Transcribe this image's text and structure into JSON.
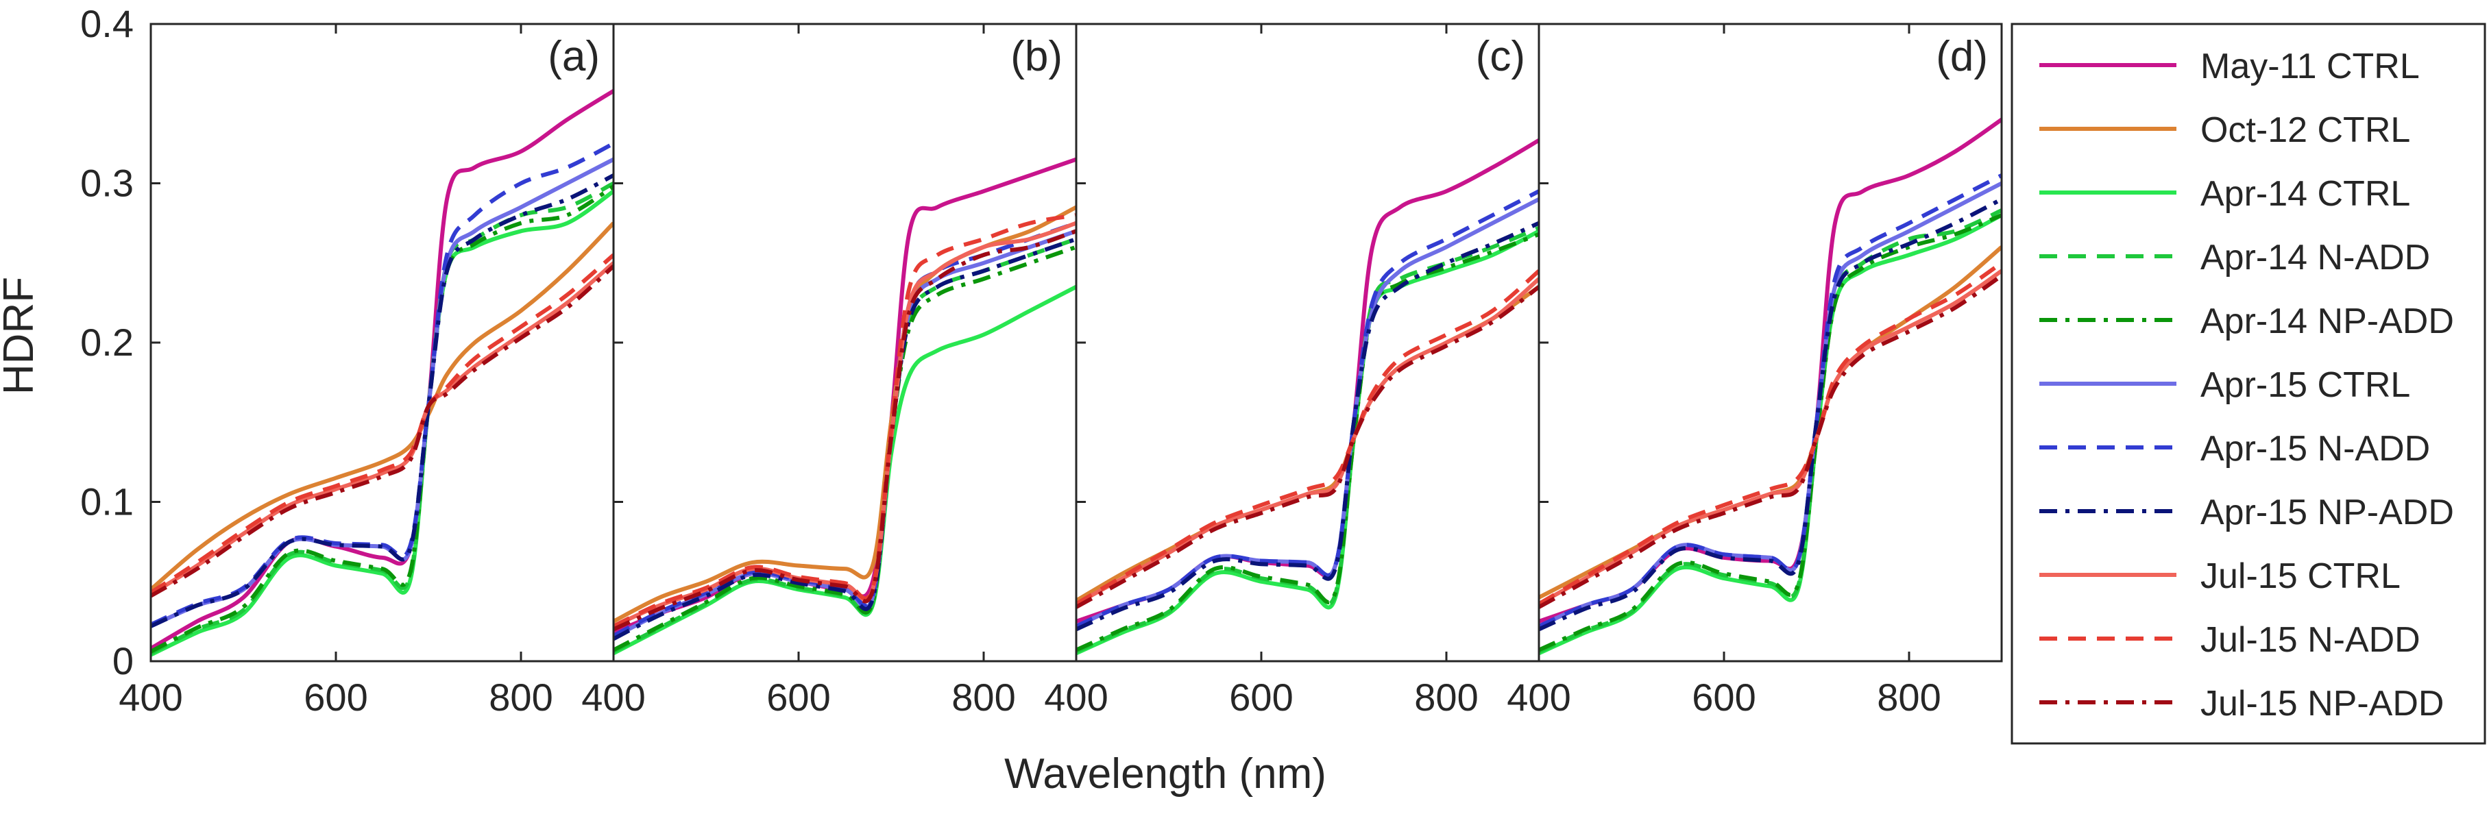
{
  "chart_data": {
    "type": "line",
    "ylabel": "HDRF",
    "xlabel": "Wavelength (nm)",
    "xlim": [
      400,
      900
    ],
    "ylim": [
      0,
      0.4
    ],
    "xticks": [
      400,
      600,
      800
    ],
    "yticks": [
      0,
      0.1,
      0.2,
      0.3,
      0.4
    ],
    "xtick_labels": [
      "400",
      "600",
      "800"
    ],
    "ytick_labels": [
      "0",
      "0.1",
      "0.2",
      "0.3",
      "0.4"
    ],
    "legend_position": "right",
    "legend": [
      {
        "name": "May-11 CTRL",
        "color": "#c8148c",
        "style": "solid"
      },
      {
        "name": "Oct-12 CTRL",
        "color": "#dc8232",
        "style": "solid"
      },
      {
        "name": "Apr-14 CTRL",
        "color": "#28e650",
        "style": "solid"
      },
      {
        "name": "Apr-14 N-ADD",
        "color": "#1ec83c",
        "style": "dash"
      },
      {
        "name": "Apr-14 NP-ADD",
        "color": "#0a960a",
        "style": "dashdot"
      },
      {
        "name": "Apr-15 CTRL",
        "color": "#6e6ee6",
        "style": "solid"
      },
      {
        "name": "Apr-15 N-ADD",
        "color": "#323cd2",
        "style": "dash"
      },
      {
        "name": "Apr-15 NP-ADD",
        "color": "#0a1478",
        "style": "dashdot"
      },
      {
        "name": "Jul-15 CTRL",
        "color": "#f0645a",
        "style": "solid"
      },
      {
        "name": "Jul-15 N-ADD",
        "color": "#e63c32",
        "style": "dash"
      },
      {
        "name": "Jul-15 NP-ADD",
        "color": "#a00a14",
        "style": "dashdot"
      }
    ],
    "x": [
      400,
      450,
      500,
      550,
      600,
      650,
      680,
      700,
      720,
      750,
      800,
      850,
      900
    ],
    "panels": [
      {
        "label": "(a)",
        "series": [
          {
            "name": "May-11 CTRL",
            "values": [
              0.008,
              0.025,
              0.04,
              0.075,
              0.072,
              0.065,
              0.07,
              0.16,
              0.29,
              0.31,
              0.32,
              0.34,
              0.358
            ]
          },
          {
            "name": "Oct-12 CTRL",
            "values": [
              0.045,
              0.07,
              0.09,
              0.105,
              0.115,
              0.125,
              0.135,
              0.155,
              0.18,
              0.2,
              0.22,
              0.245,
              0.275
            ]
          },
          {
            "name": "Apr-14 CTRL",
            "values": [
              0.004,
              0.018,
              0.03,
              0.065,
              0.06,
              0.055,
              0.05,
              0.16,
              0.245,
              0.26,
              0.27,
              0.275,
              0.295
            ]
          },
          {
            "name": "Apr-14 N-ADD",
            "values": [
              0.005,
              0.02,
              0.032,
              0.067,
              0.062,
              0.057,
              0.053,
              0.16,
              0.25,
              0.265,
              0.28,
              0.285,
              0.3
            ]
          },
          {
            "name": "Apr-14 NP-ADD",
            "values": [
              0.006,
              0.021,
              0.034,
              0.068,
              0.063,
              0.058,
              0.055,
              0.16,
              0.245,
              0.262,
              0.275,
              0.28,
              0.298
            ]
          },
          {
            "name": "Apr-15 CTRL",
            "values": [
              0.022,
              0.035,
              0.045,
              0.075,
              0.073,
              0.072,
              0.07,
              0.16,
              0.25,
              0.27,
              0.285,
              0.3,
              0.315
            ]
          },
          {
            "name": "Apr-15 N-ADD",
            "values": [
              0.023,
              0.036,
              0.046,
              0.076,
              0.074,
              0.073,
              0.072,
              0.16,
              0.255,
              0.28,
              0.3,
              0.31,
              0.325
            ]
          },
          {
            "name": "Apr-15 NP-ADD",
            "values": [
              0.022,
              0.035,
              0.045,
              0.075,
              0.073,
              0.072,
              0.07,
              0.16,
              0.245,
              0.265,
              0.28,
              0.29,
              0.305
            ]
          },
          {
            "name": "Jul-15 CTRL",
            "values": [
              0.042,
              0.06,
              0.08,
              0.098,
              0.108,
              0.118,
              0.128,
              0.16,
              0.17,
              0.185,
              0.205,
              0.225,
              0.25
            ]
          },
          {
            "name": "Jul-15 N-ADD",
            "values": [
              0.043,
              0.062,
              0.082,
              0.1,
              0.11,
              0.12,
              0.13,
              0.16,
              0.172,
              0.19,
              0.21,
              0.23,
              0.255
            ]
          },
          {
            "name": "Jul-15 NP-ADD",
            "values": [
              0.041,
              0.058,
              0.078,
              0.096,
              0.106,
              0.116,
              0.126,
              0.16,
              0.168,
              0.183,
              0.203,
              0.222,
              0.248
            ]
          }
        ]
      },
      {
        "label": "(b)",
        "series": [
          {
            "name": "May-11 CTRL",
            "values": [
              0.018,
              0.03,
              0.04,
              0.055,
              0.05,
              0.045,
              0.05,
              0.15,
              0.27,
              0.285,
              0.295,
              0.305,
              0.315
            ]
          },
          {
            "name": "Oct-12 CTRL",
            "values": [
              0.025,
              0.04,
              0.05,
              0.062,
              0.06,
              0.058,
              0.06,
              0.15,
              0.22,
              0.245,
              0.26,
              0.27,
              0.285
            ]
          },
          {
            "name": "Apr-14 CTRL",
            "values": [
              0.005,
              0.02,
              0.035,
              0.05,
              0.045,
              0.04,
              0.035,
              0.13,
              0.18,
              0.195,
              0.205,
              0.22,
              0.235
            ]
          },
          {
            "name": "Apr-14 N-ADD",
            "values": [
              0.006,
              0.021,
              0.036,
              0.051,
              0.046,
              0.041,
              0.036,
              0.14,
              0.215,
              0.235,
              0.245,
              0.255,
              0.265
            ]
          },
          {
            "name": "Apr-14 NP-ADD",
            "values": [
              0.007,
              0.022,
              0.037,
              0.052,
              0.047,
              0.042,
              0.037,
              0.14,
              0.21,
              0.23,
              0.24,
              0.25,
              0.26
            ]
          },
          {
            "name": "Apr-15 CTRL",
            "values": [
              0.015,
              0.03,
              0.042,
              0.055,
              0.05,
              0.045,
              0.04,
              0.14,
              0.22,
              0.24,
              0.25,
              0.26,
              0.27
            ]
          },
          {
            "name": "Apr-15 N-ADD",
            "values": [
              0.016,
              0.031,
              0.043,
              0.056,
              0.051,
              0.046,
              0.041,
              0.14,
              0.225,
              0.245,
              0.255,
              0.265,
              0.275
            ]
          },
          {
            "name": "Apr-15 NP-ADD",
            "values": [
              0.014,
              0.029,
              0.041,
              0.054,
              0.049,
              0.044,
              0.039,
              0.14,
              0.215,
              0.235,
              0.245,
              0.255,
              0.265
            ]
          },
          {
            "name": "Jul-15 CTRL",
            "values": [
              0.022,
              0.035,
              0.045,
              0.058,
              0.052,
              0.048,
              0.045,
              0.14,
              0.225,
              0.245,
              0.26,
              0.265,
              0.275
            ]
          },
          {
            "name": "Jul-15 N-ADD",
            "values": [
              0.022,
              0.036,
              0.046,
              0.059,
              0.053,
              0.049,
              0.046,
              0.145,
              0.235,
              0.255,
              0.265,
              0.275,
              0.28
            ]
          },
          {
            "name": "Jul-15 NP-ADD",
            "values": [
              0.02,
              0.033,
              0.044,
              0.057,
              0.051,
              0.047,
              0.044,
              0.14,
              0.22,
              0.24,
              0.255,
              0.26,
              0.27
            ]
          }
        ]
      },
      {
        "label": "(c)",
        "series": [
          {
            "name": "May-11 CTRL",
            "values": [
              0.025,
              0.035,
              0.045,
              0.065,
              0.062,
              0.06,
              0.06,
              0.15,
              0.26,
              0.285,
              0.295,
              0.31,
              0.327
            ]
          },
          {
            "name": "Oct-12 CTRL",
            "values": [
              0.038,
              0.055,
              0.07,
              0.085,
              0.095,
              0.105,
              0.112,
              0.14,
              0.165,
              0.185,
              0.2,
              0.215,
              0.235
            ]
          },
          {
            "name": "Apr-14 CTRL",
            "values": [
              0.005,
              0.018,
              0.03,
              0.055,
              0.05,
              0.045,
              0.04,
              0.14,
              0.22,
              0.235,
              0.245,
              0.255,
              0.27
            ]
          },
          {
            "name": "Apr-14 N-ADD",
            "values": [
              0.006,
              0.019,
              0.031,
              0.057,
              0.052,
              0.047,
              0.042,
              0.14,
              0.225,
              0.24,
              0.25,
              0.26,
              0.272
            ]
          },
          {
            "name": "Apr-14 NP-ADD",
            "values": [
              0.007,
              0.02,
              0.032,
              0.058,
              0.053,
              0.048,
              0.043,
              0.14,
              0.22,
              0.237,
              0.247,
              0.257,
              0.268
            ]
          },
          {
            "name": "Apr-15 CTRL",
            "values": [
              0.022,
              0.035,
              0.045,
              0.065,
              0.063,
              0.062,
              0.06,
              0.15,
              0.22,
              0.245,
              0.26,
              0.275,
              0.29
            ]
          },
          {
            "name": "Apr-15 N-ADD",
            "values": [
              0.022,
              0.035,
              0.045,
              0.065,
              0.063,
              0.062,
              0.06,
              0.15,
              0.225,
              0.25,
              0.265,
              0.28,
              0.295
            ]
          },
          {
            "name": "Apr-15 NP-ADD",
            "values": [
              0.02,
              0.033,
              0.043,
              0.063,
              0.061,
              0.06,
              0.058,
              0.15,
              0.215,
              0.235,
              0.25,
              0.262,
              0.275
            ]
          },
          {
            "name": "Jul-15 CTRL",
            "values": [
              0.036,
              0.052,
              0.068,
              0.085,
              0.095,
              0.105,
              0.11,
              0.14,
              0.165,
              0.185,
              0.2,
              0.215,
              0.24
            ]
          },
          {
            "name": "Jul-15 N-ADD",
            "values": [
              0.036,
              0.053,
              0.07,
              0.087,
              0.098,
              0.108,
              0.115,
              0.14,
              0.168,
              0.19,
              0.205,
              0.22,
              0.245
            ]
          },
          {
            "name": "Jul-15 NP-ADD",
            "values": [
              0.034,
              0.05,
              0.066,
              0.083,
              0.093,
              0.103,
              0.108,
              0.14,
              0.163,
              0.183,
              0.198,
              0.213,
              0.235
            ]
          }
        ]
      },
      {
        "label": "(d)",
        "series": [
          {
            "name": "May-11 CTRL",
            "values": [
              0.025,
              0.035,
              0.045,
              0.07,
              0.065,
              0.063,
              0.065,
              0.15,
              0.275,
              0.295,
              0.305,
              0.32,
              0.34
            ]
          },
          {
            "name": "Oct-12 CTRL",
            "values": [
              0.04,
              0.055,
              0.07,
              0.085,
              0.095,
              0.105,
              0.112,
              0.14,
              0.175,
              0.195,
              0.215,
              0.235,
              0.26
            ]
          },
          {
            "name": "Apr-14 CTRL",
            "values": [
              0.005,
              0.018,
              0.03,
              0.058,
              0.052,
              0.047,
              0.045,
              0.14,
              0.225,
              0.245,
              0.255,
              0.265,
              0.28
            ]
          },
          {
            "name": "Apr-14 N-ADD",
            "values": [
              0.006,
              0.019,
              0.031,
              0.06,
              0.054,
              0.049,
              0.047,
              0.14,
              0.23,
              0.25,
              0.265,
              0.27,
              0.283
            ]
          },
          {
            "name": "Apr-14 NP-ADD",
            "values": [
              0.007,
              0.02,
              0.032,
              0.061,
              0.055,
              0.05,
              0.048,
              0.14,
              0.225,
              0.247,
              0.26,
              0.268,
              0.28
            ]
          },
          {
            "name": "Apr-15 CTRL",
            "values": [
              0.022,
              0.035,
              0.045,
              0.072,
              0.067,
              0.065,
              0.063,
              0.15,
              0.235,
              0.255,
              0.27,
              0.285,
              0.3
            ]
          },
          {
            "name": "Apr-15 N-ADD",
            "values": [
              0.022,
              0.035,
              0.045,
              0.072,
              0.067,
              0.065,
              0.063,
              0.15,
              0.24,
              0.26,
              0.275,
              0.29,
              0.305
            ]
          },
          {
            "name": "Apr-15 NP-ADD",
            "values": [
              0.02,
              0.033,
              0.043,
              0.07,
              0.065,
              0.063,
              0.061,
              0.15,
              0.23,
              0.25,
              0.262,
              0.275,
              0.29
            ]
          },
          {
            "name": "Jul-15 CTRL",
            "values": [
              0.036,
              0.052,
              0.068,
              0.085,
              0.095,
              0.105,
              0.11,
              0.14,
              0.175,
              0.195,
              0.21,
              0.225,
              0.245
            ]
          },
          {
            "name": "Jul-15 N-ADD",
            "values": [
              0.036,
              0.053,
              0.07,
              0.087,
              0.098,
              0.108,
              0.115,
              0.14,
              0.178,
              0.198,
              0.215,
              0.23,
              0.25
            ]
          },
          {
            "name": "Jul-15 NP-ADD",
            "values": [
              0.034,
              0.05,
              0.066,
              0.083,
              0.093,
              0.103,
              0.108,
              0.14,
              0.172,
              0.192,
              0.207,
              0.222,
              0.242
            ]
          }
        ]
      }
    ]
  }
}
